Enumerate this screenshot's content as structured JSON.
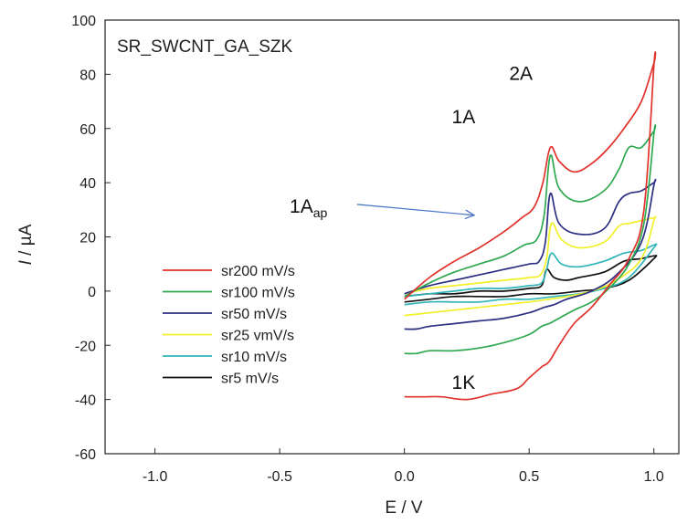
{
  "chart_data": {
    "type": "line",
    "title": "SR_SWCNT_GA_SZK",
    "xlabel": "E / V",
    "ylabel": "I / µA",
    "ylabel_italic_part": "I",
    "ylabel_rest": " / µA",
    "xlim": [
      -1.2,
      1.1
    ],
    "ylim": [
      -60,
      100
    ],
    "xticks": [
      -1.0,
      -0.5,
      0.0,
      0.5,
      1.0
    ],
    "xtick_labels": [
      "-1.0",
      "-0.5",
      "0.0",
      "0.5",
      "1.0"
    ],
    "yticks": [
      -60,
      -40,
      -20,
      0,
      20,
      40,
      60,
      80,
      100
    ],
    "ytick_labels": [
      "-60",
      "-40",
      "-20",
      "0",
      "20",
      "40",
      "60",
      "80",
      "100"
    ],
    "grid": false,
    "legend_position": "middle-left",
    "annotations": [
      {
        "text": "1A",
        "x": 0.19,
        "y": 62
      },
      {
        "text": "2A",
        "x": 0.42,
        "y": 78
      },
      {
        "text": "1K",
        "x": 0.19,
        "y": -36
      },
      {
        "text": "1A",
        "sub": "ap",
        "x": -0.46,
        "y": 29
      }
    ],
    "arrow": {
      "from": [
        -0.19,
        32
      ],
      "to": [
        0.28,
        28
      ],
      "color": "#4472c4"
    },
    "series": [
      {
        "name": "sr200 mV/s",
        "color": "#e0322b",
        "x": [
          0.0,
          0.1,
          0.2,
          0.3,
          0.4,
          0.47,
          0.52,
          0.555,
          0.585,
          0.62,
          0.68,
          0.75,
          0.82,
          0.88,
          0.95,
          1.0,
          1.0,
          0.96,
          0.9,
          0.82,
          0.75,
          0.68,
          0.62,
          0.58,
          0.55,
          0.5,
          0.45,
          0.35,
          0.25,
          0.15,
          0.08,
          0.02,
          0.0
        ],
        "y": [
          -3,
          5,
          11,
          16,
          22,
          27,
          31,
          40,
          53,
          48,
          44,
          47,
          53,
          60,
          70,
          84,
          83,
          30,
          12,
          2,
          -6,
          -12,
          -20,
          -26,
          -28,
          -32,
          -36,
          -38,
          -40,
          -39,
          -39,
          -39,
          -39
        ]
      },
      {
        "name": "sr100 mV/s",
        "color": "#2ea84f",
        "x": [
          0.0,
          0.1,
          0.2,
          0.3,
          0.4,
          0.48,
          0.53,
          0.56,
          0.585,
          0.62,
          0.7,
          0.8,
          0.86,
          0.9,
          0.95,
          1.0,
          1.0,
          0.96,
          0.9,
          0.82,
          0.75,
          0.68,
          0.62,
          0.58,
          0.55,
          0.5,
          0.4,
          0.3,
          0.2,
          0.1,
          0.05,
          0.0
        ],
        "y": [
          -2,
          3,
          7,
          10,
          13,
          17,
          19,
          28,
          50,
          38,
          33,
          37,
          45,
          53,
          53,
          59,
          58,
          25,
          10,
          1,
          -4,
          -7,
          -10,
          -12,
          -13,
          -16,
          -19,
          -21,
          -22,
          -22,
          -23,
          -23
        ]
      },
      {
        "name": "sr50 mV/s",
        "color": "#2c2f82",
        "x": [
          0.0,
          0.1,
          0.2,
          0.3,
          0.4,
          0.5,
          0.54,
          0.565,
          0.585,
          0.62,
          0.7,
          0.8,
          0.86,
          0.9,
          0.95,
          1.0,
          1.0,
          0.95,
          0.85,
          0.75,
          0.65,
          0.6,
          0.56,
          0.5,
          0.4,
          0.3,
          0.2,
          0.1,
          0.05,
          0.0
        ],
        "y": [
          -1,
          2,
          4,
          6,
          8,
          10,
          11,
          18,
          36,
          25,
          21,
          23,
          33,
          36,
          37,
          40,
          39,
          18,
          6,
          0,
          -3,
          -5,
          -6,
          -8,
          -10,
          -11,
          -12,
          -13,
          -14,
          -14
        ]
      },
      {
        "name": "sr25 vmV/s",
        "color": "#f2f02a",
        "x": [
          0.0,
          0.1,
          0.2,
          0.3,
          0.4,
          0.5,
          0.545,
          0.57,
          0.59,
          0.63,
          0.7,
          0.8,
          0.86,
          0.9,
          0.95,
          1.0,
          1.0,
          0.95,
          0.85,
          0.75,
          0.65,
          0.58,
          0.5,
          0.4,
          0.3,
          0.2,
          0.1,
          0.0
        ],
        "y": [
          -1,
          1,
          2,
          3,
          4,
          5,
          6,
          12,
          25,
          19,
          16,
          18,
          24,
          25,
          26,
          27,
          26,
          12,
          4,
          0,
          -2,
          -3,
          -4,
          -5,
          -6,
          -7,
          -8,
          -9
        ]
      },
      {
        "name": "sr10 mV/s",
        "color": "#2fb5b8",
        "x": [
          0.0,
          0.1,
          0.2,
          0.3,
          0.4,
          0.5,
          0.55,
          0.57,
          0.59,
          0.63,
          0.7,
          0.8,
          0.88,
          0.95,
          1.0,
          1.0,
          0.9,
          0.8,
          0.7,
          0.6,
          0.5,
          0.4,
          0.3,
          0.2,
          0.1,
          0.0
        ],
        "y": [
          -2,
          -1,
          0,
          1,
          1,
          2,
          3,
          8,
          14,
          10,
          9,
          11,
          14,
          15,
          17,
          16,
          5,
          1,
          -1,
          -2,
          -3,
          -3,
          -4,
          -4,
          -4,
          -5
        ]
      },
      {
        "name": "sr5 mV/s",
        "color": "#111111",
        "x": [
          0.0,
          0.1,
          0.2,
          0.3,
          0.4,
          0.5,
          0.55,
          0.57,
          0.6,
          0.65,
          0.7,
          0.8,
          0.88,
          0.95,
          1.0,
          1.0,
          0.9,
          0.8,
          0.7,
          0.6,
          0.5,
          0.4,
          0.3,
          0.2,
          0.1,
          0.0
        ],
        "y": [
          -2,
          -1,
          -1,
          0,
          0,
          1,
          2,
          8,
          5,
          4,
          5,
          7,
          11,
          12,
          13,
          12,
          4,
          1,
          0,
          -1,
          -1,
          -2,
          -2,
          -2,
          -3,
          -4
        ]
      }
    ]
  }
}
